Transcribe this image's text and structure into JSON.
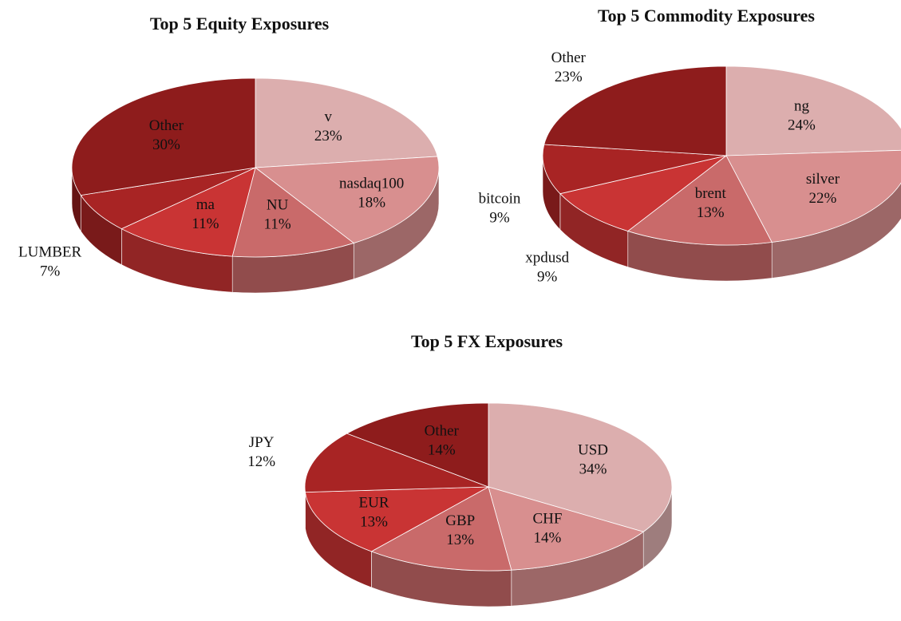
{
  "chart_data": [
    {
      "type": "pie",
      "title": "Top 5 Equity  Exposures",
      "categories": [
        "v",
        "nasdaq100",
        "NU",
        "ma",
        "LUMBER",
        "Other"
      ],
      "values": [
        23,
        18,
        11,
        11,
        7,
        30
      ],
      "value_labels": [
        "23%",
        "18%",
        "11%",
        "11%",
        "7%",
        "30%"
      ],
      "colors": [
        "#dcaeae",
        "#d88f8f",
        "#c96a6a",
        "#c93434",
        "#a82424",
        "#8e1c1c"
      ]
    },
    {
      "type": "pie",
      "title": "Top 5 Commodity  Exposures",
      "categories": [
        "ng",
        "silver",
        "brent",
        "xpdusd",
        "bitcoin",
        "Other"
      ],
      "values": [
        24,
        22,
        13,
        9,
        9,
        23
      ],
      "value_labels": [
        "24%",
        "22%",
        "13%",
        "9%",
        "9%",
        "23%"
      ],
      "colors": [
        "#dcaeae",
        "#d88f8f",
        "#c96a6a",
        "#c93434",
        "#a82424",
        "#8e1c1c"
      ]
    },
    {
      "type": "pie",
      "title": "Top 5 FX Exposures",
      "categories": [
        "USD",
        "CHF",
        "GBP",
        "EUR",
        "JPY",
        "Other"
      ],
      "values": [
        34,
        14,
        13,
        13,
        12,
        14
      ],
      "value_labels": [
        "34%",
        "14%",
        "13%",
        "13%",
        "12%",
        "14%"
      ],
      "colors": [
        "#dcaeae",
        "#d88f8f",
        "#c96a6a",
        "#c93434",
        "#a82424",
        "#8e1c1c"
      ]
    }
  ]
}
